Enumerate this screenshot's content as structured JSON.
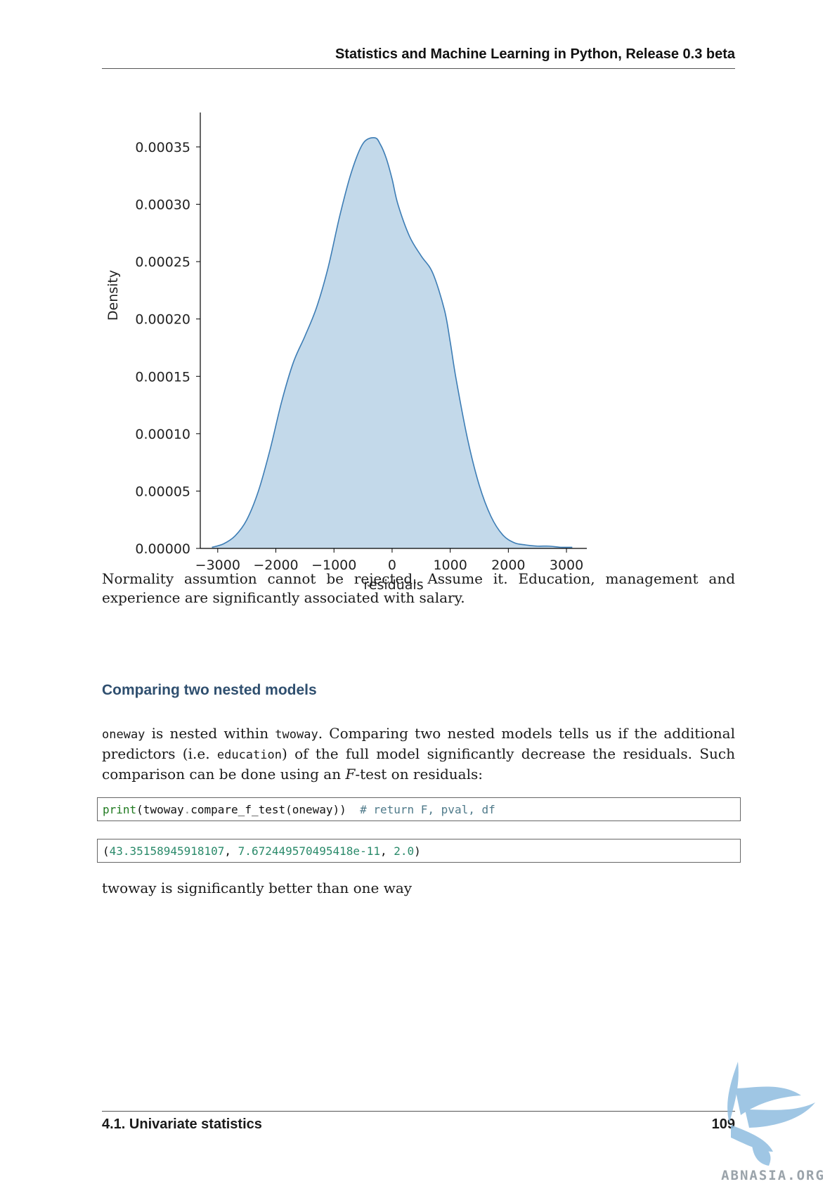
{
  "header": {
    "title": "Statistics and Machine Learning in Python, Release 0.3 beta"
  },
  "chart_data": {
    "type": "area",
    "xlabel": "residuals",
    "ylabel": "Density",
    "xlim": [
      -3300,
      3350
    ],
    "ylim": [
      0,
      0.00038
    ],
    "xticks": [
      -3000,
      -2000,
      -1000,
      0,
      1000,
      2000,
      3000
    ],
    "xtick_labels": [
      "−3000",
      "−2000",
      "−1000",
      "0",
      "1000",
      "2000",
      "3000"
    ],
    "yticks": [
      0,
      5e-05,
      0.0001,
      0.00015,
      0.0002,
      0.00025,
      0.0003,
      0.00035
    ],
    "ytick_labels": [
      "0.00000",
      "0.00005",
      "0.00010",
      "0.00015",
      "0.00020",
      "0.00025",
      "0.00030",
      "0.00035"
    ],
    "x": [
      -3100,
      -2900,
      -2700,
      -2500,
      -2300,
      -2100,
      -1900,
      -1700,
      -1500,
      -1300,
      -1100,
      -900,
      -700,
      -500,
      -300,
      -200,
      -100,
      0,
      100,
      300,
      500,
      700,
      900,
      1000,
      1100,
      1300,
      1500,
      1700,
      1900,
      2100,
      2300,
      2500,
      2700,
      2900,
      3100
    ],
    "y": [
      1e-06,
      4e-06,
      1.1e-05,
      2.5e-05,
      5e-05,
      8.6e-05,
      0.000128,
      0.000162,
      0.000185,
      0.00021,
      0.000245,
      0.00029,
      0.000328,
      0.000353,
      0.000358,
      0.000352,
      0.00034,
      0.000322,
      0.0003,
      0.000272,
      0.000255,
      0.00024,
      0.000208,
      0.00018,
      0.000148,
      9.5e-05,
      5.5e-05,
      2.8e-05,
      1.2e-05,
      5e-06,
      3e-06,
      2e-06,
      2e-06,
      1e-06,
      1e-06
    ],
    "fill_color": "#c3d9ea",
    "line_color": "#3d7db5",
    "grid": false
  },
  "paragraphs": {
    "p1": "Normality assumtion cannot be rejected. Assume it. Education, management and experience are significantly associated with salary.",
    "p2_code_oneway": "oneway",
    "p2_part1": " is nested within ",
    "p2_code_twoway": "twoway",
    "p2_part2": ". Comparing two nested models tells us if the additional predictors (i.e. ",
    "p2_code_education": "education",
    "p2_part3": ") of the full model significantly decrease the residuals. Such comparison can be done using an ",
    "p2_F": "F",
    "p2_part4": "-test on residuals:",
    "p3": "twoway is significantly better than one way"
  },
  "section": {
    "heading": "Comparing two nested models"
  },
  "code": {
    "line1_kw": "print",
    "line1_rest": "(twoway",
    "line1_dot": ".",
    "line1_call": "compare_f_test(oneway))  ",
    "line1_comment": "# return F, pval, df",
    "out_open": "(",
    "out_v1": "43.35158945918107",
    "out_sep1": ", ",
    "out_v2": "7.672449570495418e-11",
    "out_sep2": ", ",
    "out_v3": "2.0",
    "out_close": ")"
  },
  "footer": {
    "section": "4.1.  Univariate statistics",
    "page": "109"
  },
  "watermark": {
    "text": "ABNASIA.ORG"
  }
}
